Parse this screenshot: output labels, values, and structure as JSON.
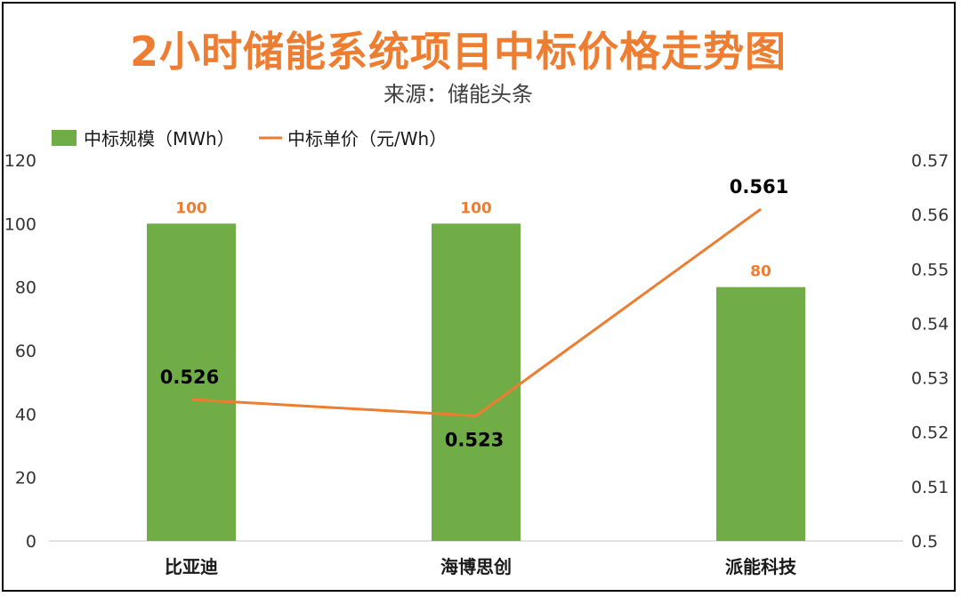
{
  "chart_data": {
    "type": "bar",
    "title": "2小时储能系统项目中标价格走势图",
    "subtitle": "来源：储能头条",
    "categories": [
      "比亚迪",
      "海博思创",
      "派能科技"
    ],
    "series": [
      {
        "name": "中标规模（MWh）",
        "type": "bar",
        "axis": "left",
        "values": [
          100,
          100,
          80
        ],
        "labels": [
          "100",
          "100",
          "80"
        ]
      },
      {
        "name": "中标单价（元/Wh）",
        "type": "line",
        "axis": "right",
        "values": [
          0.526,
          0.523,
          0.561
        ],
        "labels": [
          "0.526",
          "0.523",
          "0.561"
        ]
      }
    ],
    "y_left": {
      "min": 0,
      "max": 120,
      "ticks": [
        "0",
        "20",
        "40",
        "60",
        "80",
        "100",
        "120"
      ]
    },
    "y_right": {
      "min": 0.5,
      "max": 0.57,
      "ticks": [
        "0.5",
        "0.51",
        "0.52",
        "0.53",
        "0.54",
        "0.55",
        "0.56",
        "0.57"
      ]
    },
    "legend_position": "top-left",
    "grid": false,
    "colors": {
      "bar": "#70AD47",
      "line": "#ED7D31",
      "title": "#ED7D31",
      "bar_label": "#ED7D31",
      "line_label": "#000000"
    }
  }
}
